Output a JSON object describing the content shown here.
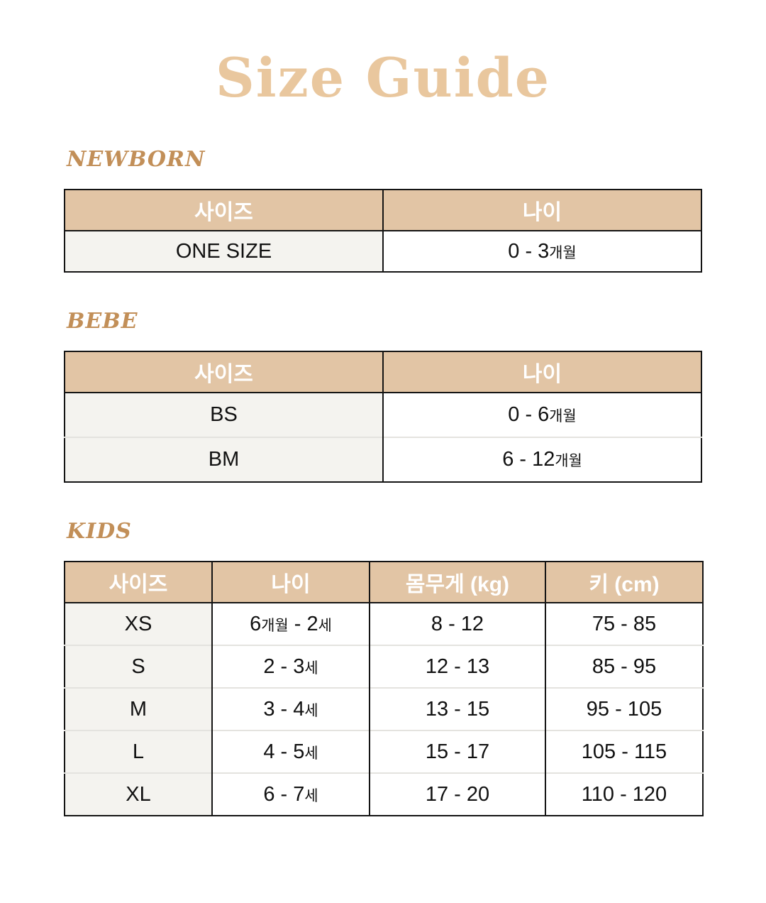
{
  "page": {
    "title": "Size Guide"
  },
  "colors": {
    "title_text": "#e9c79e",
    "section_label_text": "#c28f58",
    "table_header_bg": "#e2c5a5",
    "table_header_text": "#ffffff",
    "first_column_bg": "#f4f3ef",
    "table_border": "#141414",
    "row_divider": "#e4e3df"
  },
  "sections": [
    {
      "label": "NEWBORN",
      "table": {
        "columns": [
          "사이즈",
          "나이"
        ],
        "rows": [
          [
            "ONE SIZE",
            "0 - 3개월"
          ]
        ]
      }
    },
    {
      "label": "BEBE",
      "table": {
        "columns": [
          "사이즈",
          "나이"
        ],
        "rows": [
          [
            "BS",
            "0 - 6개월"
          ],
          [
            "BM",
            "6 - 12개월"
          ]
        ]
      }
    },
    {
      "label": "KIDS",
      "table": {
        "columns": [
          "사이즈",
          "나이",
          "몸무게 (kg)",
          "키 (cm)"
        ],
        "rows": [
          [
            "XS",
            "6개월 - 2세",
            "8 - 12",
            "75 - 85"
          ],
          [
            "S",
            "2 - 3세",
            "12 - 13",
            "85 - 95"
          ],
          [
            "M",
            "3 - 4세",
            "13 - 15",
            "95 - 105"
          ],
          [
            "L",
            "4 - 5세",
            "15 - 17",
            "105 - 115"
          ],
          [
            "XL",
            "6 - 7세",
            "17 - 20",
            "110 - 120"
          ]
        ]
      }
    }
  ]
}
